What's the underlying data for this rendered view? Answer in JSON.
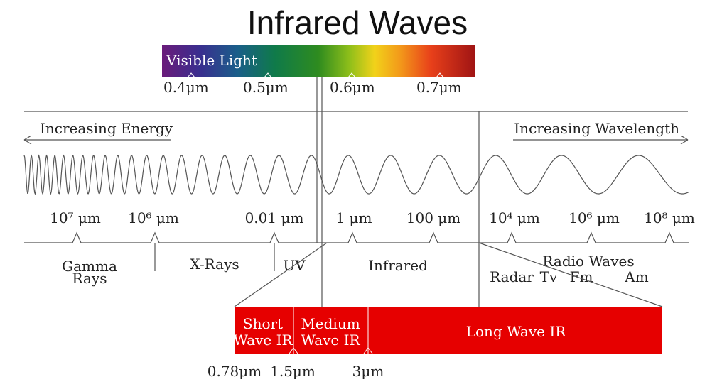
{
  "title": "Infrared Waves",
  "visible": {
    "label": "Visible Light",
    "ticks": [
      "0.4μm",
      "0.5μm",
      "0.6μm",
      "0.7μm"
    ]
  },
  "energy_label": "Increasing Energy",
  "wavelength_label": "Increasing Wavelength",
  "scale_ticks": [
    "10⁷ μm",
    "10⁶ μm",
    "0.01 μm",
    "1 μm",
    "100 μm",
    "10⁴ μm",
    "10⁶ μm",
    "10⁸ μm"
  ],
  "regions": {
    "gamma": [
      "Gamma",
      "Rays"
    ],
    "xrays": "X-Rays",
    "uv": "UV",
    "infrared": "Infrared",
    "radio": "Radio Waves",
    "radar": "Radar",
    "tv": "Tv",
    "fm": "Fm",
    "am": "Am"
  },
  "ir_bands": {
    "short": [
      "Short",
      "Wave IR"
    ],
    "medium": [
      "Medium",
      "Wave IR"
    ],
    "long": "Long Wave IR"
  },
  "ir_ticks": [
    "0.78μm",
    "1.5μm",
    "3μm"
  ],
  "colors": {
    "ir_red": "#e60000",
    "spectrum": [
      "#6a1b7a",
      "#3a2e8f",
      "#1a5e8a",
      "#0f7a4a",
      "#2e8b1f",
      "#8fbf1a",
      "#f2d21a",
      "#f39a1a",
      "#e8401a",
      "#a01414"
    ]
  }
}
